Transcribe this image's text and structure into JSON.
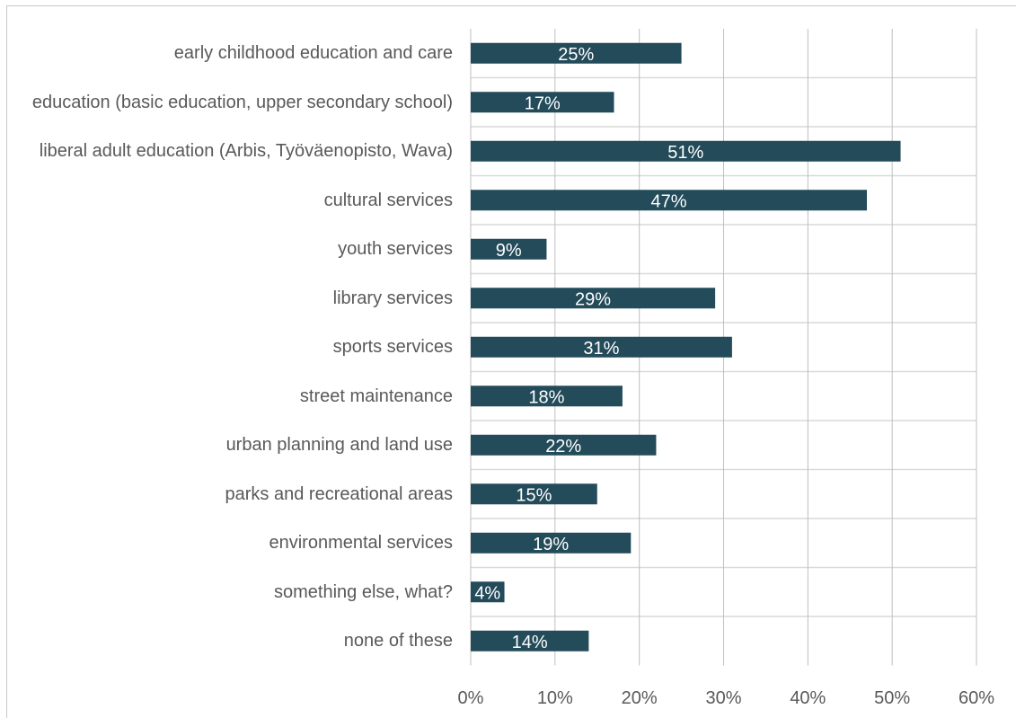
{
  "chart_data": {
    "type": "bar",
    "orientation": "horizontal",
    "categories": [
      "early childhood education and care",
      "education (basic education, upper secondary school)",
      "liberal adult education (Arbis, Työväenopisto, Wava)",
      "cultural services",
      "youth services",
      "library services",
      "sports services",
      "street maintenance",
      "urban planning and land use",
      "parks and recreational areas",
      "environmental services",
      "something else, what?",
      "none of these"
    ],
    "values": [
      25,
      17,
      51,
      47,
      9,
      29,
      31,
      18,
      22,
      15,
      19,
      4,
      14
    ],
    "data_labels": [
      "25%",
      "17%",
      "51%",
      "47%",
      "9%",
      "29%",
      "31%",
      "18%",
      "22%",
      "15%",
      "19%",
      "4%",
      "14%"
    ],
    "xlim": [
      0,
      60
    ],
    "x_ticks": [
      0,
      10,
      20,
      30,
      40,
      50,
      60
    ],
    "x_tick_labels": [
      "0%",
      "10%",
      "20%",
      "30%",
      "40%",
      "50%",
      "60%"
    ],
    "grid": true,
    "legend": "none",
    "bar_color": "#234b5a",
    "label_color": "#ffffff",
    "title": "",
    "xlabel": "",
    "ylabel": ""
  }
}
